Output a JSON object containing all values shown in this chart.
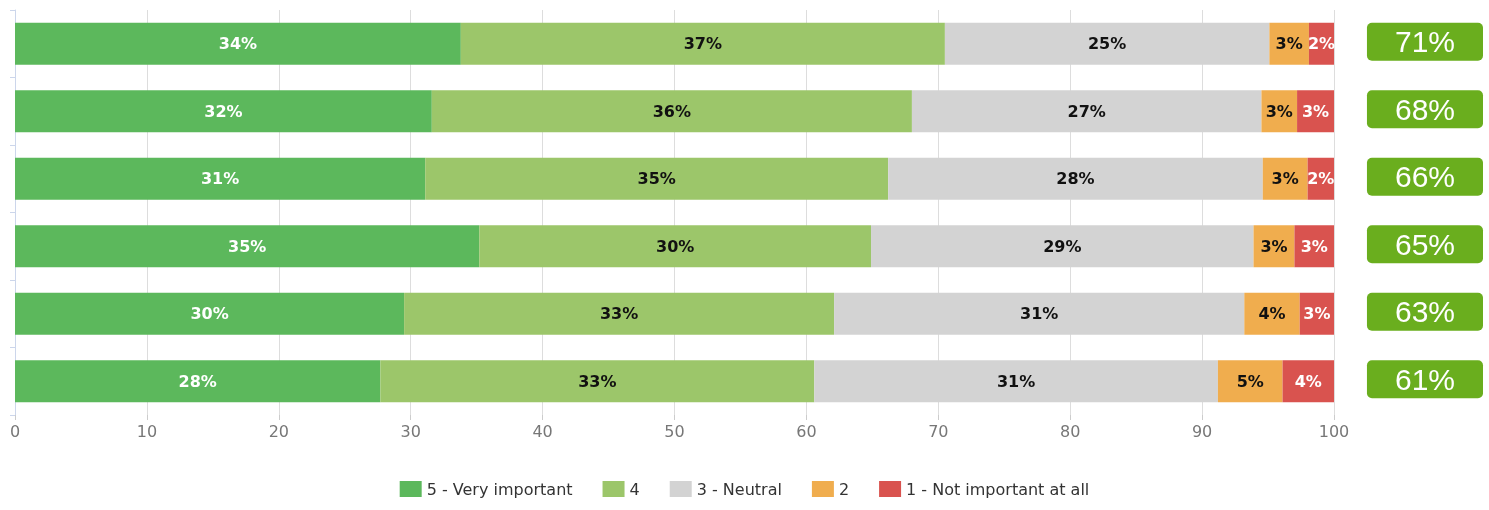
{
  "chart_data": {
    "type": "bar",
    "orientation": "horizontal",
    "stacked": true,
    "categories": [
      null,
      null,
      null,
      null,
      null,
      null
    ],
    "series": [
      {
        "name": "5 - Very important",
        "color": "#5cb85c",
        "values": [
          33.8,
          31.6,
          31.1,
          35.2,
          29.5,
          27.7
        ],
        "value_labels": [
          "34%",
          "32%",
          "31%",
          "35%",
          "30%",
          "28%"
        ]
      },
      {
        "name": "4",
        "color": "#9cc66a",
        "values": [
          36.7,
          36.4,
          35.1,
          29.7,
          32.6,
          32.9
        ],
        "value_labels": [
          "37%",
          "36%",
          "35%",
          "30%",
          "33%",
          "33%"
        ]
      },
      {
        "name": "3 - Neutral",
        "color": "#d3d3d3",
        "values": [
          24.6,
          26.5,
          28.4,
          29.0,
          31.1,
          30.6
        ],
        "value_labels": [
          "25%",
          "27%",
          "28%",
          "29%",
          "31%",
          "31%"
        ]
      },
      {
        "name": "2",
        "color": "#f0ad4e",
        "values": [
          3.0,
          2.7,
          3.4,
          3.1,
          4.2,
          4.9
        ],
        "value_labels": [
          "3%",
          "3%",
          "3%",
          "3%",
          "4%",
          "5%"
        ]
      },
      {
        "name": "1 - Not important at all",
        "color": "#d9534f",
        "values": [
          1.9,
          2.8,
          2.0,
          3.0,
          2.6,
          3.9
        ],
        "value_labels": [
          "2%",
          "3%",
          "2%",
          "3%",
          "3%",
          "4%"
        ]
      }
    ],
    "xlim": [
      0,
      100
    ],
    "xticks": [
      0,
      10,
      20,
      30,
      40,
      50,
      60,
      70,
      80,
      90,
      100
    ],
    "grid": "x",
    "legend": "bottom",
    "annotations": [
      "71%",
      "68%",
      "66%",
      "65%",
      "63%",
      "61%"
    ]
  }
}
